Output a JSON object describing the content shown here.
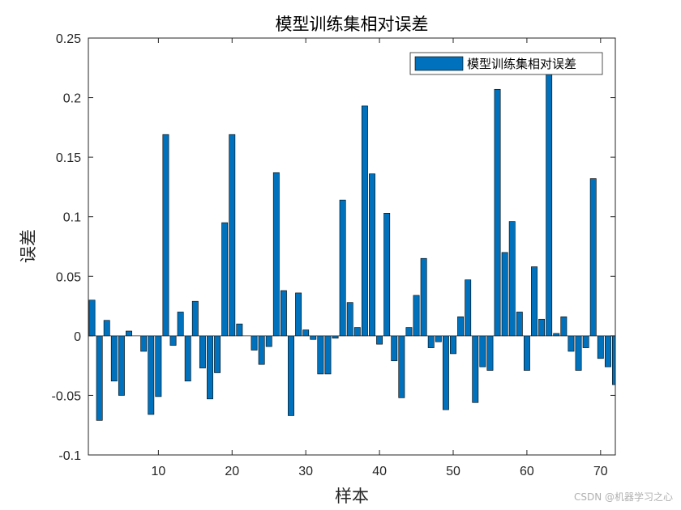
{
  "chart_data": {
    "type": "bar",
    "title": "模型训练集相对误差",
    "xlabel": "样本",
    "ylabel": "误差",
    "xlim": [
      0.5,
      72
    ],
    "ylim": [
      -0.1,
      0.25
    ],
    "xticks": [
      10,
      20,
      30,
      40,
      50,
      60,
      70
    ],
    "yticks": [
      -0.1,
      -0.05,
      0,
      0.05,
      0.1,
      0.15,
      0.2,
      0.25
    ],
    "xtick_labels": [
      "10",
      "20",
      "30",
      "40",
      "50",
      "60",
      "70"
    ],
    "ytick_labels": [
      "-0.1",
      "-0.05",
      "0",
      "0.05",
      "0.1",
      "0.15",
      "0.2",
      "0.25"
    ],
    "legend": {
      "label": "模型训练集相对误差",
      "placement": "top-right"
    },
    "bar_color": "#0072BD",
    "grid": false,
    "series": [
      {
        "name": "模型训练集相对误差",
        "x": [
          1,
          2,
          3,
          4,
          5,
          6,
          7,
          8,
          9,
          10,
          11,
          12,
          13,
          14,
          15,
          16,
          17,
          18,
          19,
          20,
          21,
          22,
          23,
          24,
          25,
          26,
          27,
          28,
          29,
          30,
          31,
          32,
          33,
          34,
          35,
          36,
          37,
          38,
          39,
          40,
          41,
          42,
          43,
          44,
          45,
          46,
          47,
          48,
          49,
          50,
          51,
          52,
          53,
          54,
          55,
          56,
          57,
          58,
          59,
          60,
          61,
          62,
          63,
          64,
          65,
          66,
          67,
          68,
          69,
          70,
          71,
          72
        ],
        "values": [
          0.03,
          -0.071,
          0.013,
          -0.038,
          -0.05,
          0.004,
          0,
          -0.013,
          -0.066,
          -0.051,
          0.169,
          -0.008,
          0.02,
          -0.038,
          0.029,
          -0.027,
          -0.053,
          -0.031,
          0.095,
          0.169,
          0.01,
          0,
          -0.012,
          -0.024,
          -0.009,
          0.137,
          0.038,
          -0.067,
          0.036,
          0.005,
          -0.003,
          -0.032,
          -0.032,
          -0.002,
          0.114,
          0.028,
          0.007,
          0.193,
          0.136,
          -0.007,
          0.103,
          -0.021,
          -0.052,
          0.007,
          0.034,
          0.065,
          -0.01,
          -0.005,
          -0.062,
          -0.015,
          0.016,
          0.047,
          -0.056,
          -0.026,
          -0.029,
          0.207,
          0.07,
          0.096,
          0.02,
          -0.029,
          0.058,
          0.014,
          0.235,
          0.002,
          0.016,
          -0.013,
          -0.029,
          -0.01,
          0.132,
          -0.019,
          -0.026,
          -0.041
        ]
      }
    ]
  },
  "watermark": "CSDN @机器学习之心"
}
